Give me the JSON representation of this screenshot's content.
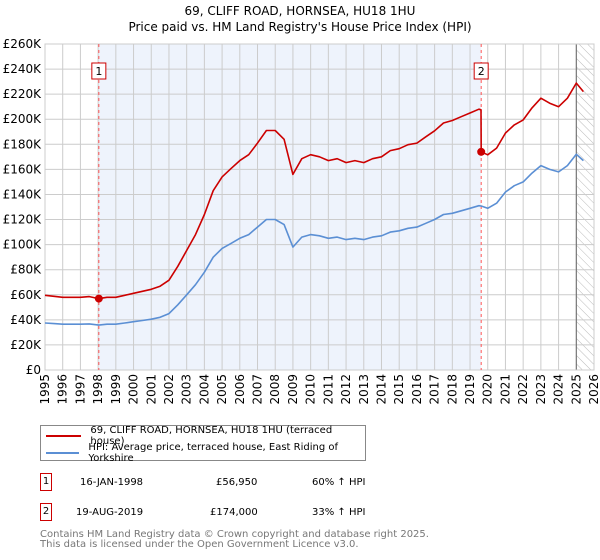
{
  "title": "69, CLIFF ROAD, HORNSEA, HU18 1HU",
  "subtitle": "Price paid vs. HM Land Registry's House Price Index (HPI)",
  "chart_data": {
    "type": "line",
    "xlim": [
      1995,
      2026
    ],
    "ylim": [
      0,
      260000
    ],
    "x_ticks": [
      "1995",
      "1996",
      "1997",
      "1998",
      "1999",
      "2000",
      "2001",
      "2002",
      "2003",
      "2004",
      "2005",
      "2006",
      "2007",
      "2008",
      "2009",
      "2010",
      "2011",
      "2012",
      "2013",
      "2014",
      "2015",
      "2016",
      "2017",
      "2018",
      "2019",
      "2020",
      "2021",
      "2022",
      "2023",
      "2024",
      "2025",
      "2026"
    ],
    "y_ticks": [
      {
        "v": 0,
        "l": "£0"
      },
      {
        "v": 20000,
        "l": "£20K"
      },
      {
        "v": 40000,
        "l": "£40K"
      },
      {
        "v": 60000,
        "l": "£60K"
      },
      {
        "v": 80000,
        "l": "£80K"
      },
      {
        "v": 100000,
        "l": "£100K"
      },
      {
        "v": 120000,
        "l": "£120K"
      },
      {
        "v": 140000,
        "l": "£140K"
      },
      {
        "v": 160000,
        "l": "£160K"
      },
      {
        "v": 180000,
        "l": "£180K"
      },
      {
        "v": 200000,
        "l": "£200K"
      },
      {
        "v": 220000,
        "l": "£220K"
      },
      {
        "v": 240000,
        "l": "£240K"
      },
      {
        "v": 260000,
        "l": "£260K"
      }
    ],
    "grid": true,
    "shaded_range": [
      1998.04,
      2019.63
    ],
    "hatched_from": 2025.0,
    "series": [
      {
        "name": "69, CLIFF ROAD, HORNSEA, HU18 1HU (terraced house)",
        "color": "#cc0000",
        "x": [
          1995,
          1995.5,
          1996,
          1996.5,
          1997,
          1997.5,
          1998.04,
          1998.5,
          1999,
          1999.5,
          2000,
          2000.5,
          2001,
          2001.5,
          2002,
          2002.5,
          2003,
          2003.5,
          2004,
          2004.5,
          2005,
          2005.5,
          2006,
          2006.5,
          2007,
          2007.5,
          2008,
          2008.5,
          2009,
          2009.5,
          2010,
          2010.5,
          2011,
          2011.5,
          2012,
          2012.5,
          2013,
          2013.5,
          2014,
          2014.5,
          2015,
          2015.5,
          2016,
          2016.5,
          2017,
          2017.5,
          2018,
          2018.5,
          2019,
          2019.5,
          2019.62,
          2019.63,
          2020,
          2020.5,
          2021,
          2021.5,
          2022,
          2022.5,
          2023,
          2023.5,
          2024,
          2024.5,
          2025,
          2025.4
        ],
        "y": [
          59600,
          58800,
          58000,
          58000,
          58000,
          58500,
          56950,
          58000,
          58000,
          59600,
          61200,
          62800,
          64400,
          66800,
          71600,
          82700,
          95400,
          108000,
          124000,
          143000,
          154000,
          160600,
          167000,
          171700,
          181000,
          191000,
          191000,
          184000,
          156000,
          168500,
          171700,
          170000,
          167000,
          168500,
          165400,
          167000,
          165400,
          168500,
          170000,
          175000,
          176500,
          179700,
          181000,
          186000,
          190800,
          197000,
          199000,
          202000,
          205000,
          208000,
          207500,
          174000,
          171600,
          177000,
          189000,
          195500,
          199500,
          209000,
          216800,
          212800,
          210000,
          216800,
          228800,
          222000
        ]
      },
      {
        "name": "HPI: Average price, terraced house, East Riding of Yorkshire",
        "color": "#5b8fd4",
        "x": [
          1995,
          1995.5,
          1996,
          1996.5,
          1997,
          1997.5,
          1998.04,
          1998.5,
          1999,
          1999.5,
          2000,
          2000.5,
          2001,
          2001.5,
          2002,
          2002.5,
          2003,
          2003.5,
          2004,
          2004.5,
          2005,
          2005.5,
          2006,
          2006.5,
          2007,
          2007.5,
          2008,
          2008.5,
          2009,
          2009.5,
          2010,
          2010.5,
          2011,
          2011.5,
          2012,
          2012.5,
          2013,
          2013.5,
          2014,
          2014.5,
          2015,
          2015.5,
          2016,
          2016.5,
          2017,
          2017.5,
          2018,
          2018.5,
          2019,
          2019.5,
          2019.63,
          2020,
          2020.5,
          2021,
          2021.5,
          2022,
          2022.5,
          2023,
          2023.5,
          2024,
          2024.5,
          2025,
          2025.4
        ],
        "y": [
          37500,
          37000,
          36500,
          36500,
          36500,
          36800,
          35800,
          36500,
          36500,
          37500,
          38500,
          39500,
          40500,
          42000,
          45000,
          52000,
          60000,
          68000,
          78000,
          90000,
          97000,
          101000,
          105000,
          108000,
          114000,
          120000,
          120000,
          116000,
          98000,
          106000,
          108000,
          107000,
          105000,
          106000,
          104000,
          105000,
          104000,
          106000,
          107000,
          110000,
          111000,
          113000,
          114000,
          117000,
          120000,
          124000,
          125000,
          127000,
          129000,
          131000,
          130800,
          129000,
          133000,
          142000,
          147000,
          150000,
          157000,
          163000,
          160000,
          158000,
          163000,
          172000,
          167000
        ]
      }
    ],
    "sales": [
      {
        "label": "1",
        "x": 1998.04,
        "y": 56950
      },
      {
        "label": "2",
        "x": 2019.63,
        "y": 174000
      }
    ]
  },
  "legend": {
    "items": [
      "69, CLIFF ROAD, HORNSEA, HU18 1HU (terraced house)",
      "HPI: Average price, terraced house, East Riding of Yorkshire"
    ]
  },
  "transactions": [
    {
      "marker": "1",
      "date": "16-JAN-1998",
      "price": "£56,950",
      "hpi": "60% ↑ HPI"
    },
    {
      "marker": "2",
      "date": "19-AUG-2019",
      "price": "£174,000",
      "hpi": "33% ↑ HPI"
    }
  ],
  "footer": {
    "line1": "Contains HM Land Registry data © Crown copyright and database right 2025.",
    "line2": "This data is licensed under the Open Government Licence v3.0."
  }
}
